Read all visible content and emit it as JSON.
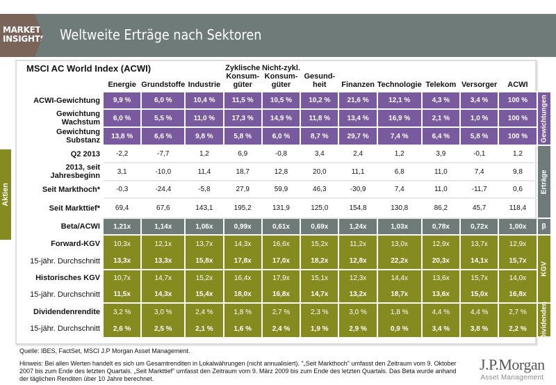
{
  "header": {
    "brand": "MARKET INSIGHTS",
    "title": "Weltweite Erträge nach Sektoren"
  },
  "side_tab": "Aktien",
  "table": {
    "index_title": "MSCI AC World Index (ACWI)",
    "columns": [
      "Energie",
      "Grundstoffe",
      "Industrie",
      "Zyklische Konsum-güter",
      "Nicht-zykl. Konsum-güter",
      "Gesund-heit",
      "Finanzen",
      "Technologie",
      "Telekom",
      "Versorger",
      "ACWI"
    ],
    "sections": {
      "weights": "Gewichtungen",
      "returns": "Erträge",
      "beta": "β",
      "pe": "KGV",
      "div": "Dividenden"
    },
    "rows": [
      {
        "label": "ACWI-Gewichtung",
        "values": [
          "9,9 %",
          "6,0 %",
          "10,4 %",
          "11,5 %",
          "10,5 %",
          "10,2 %",
          "21,6 %",
          "12,1 %",
          "4,3 %",
          "3,4 %",
          "100 %"
        ]
      },
      {
        "label": "Gewichtung Wachstum",
        "values": [
          "6,0 %",
          "5,5 %",
          "11,0 %",
          "17,3 %",
          "14,9 %",
          "11,8 %",
          "13,4 %",
          "16,9 %",
          "2,1 %",
          "1,0 %",
          "100 %"
        ]
      },
      {
        "label": "Gewichtung Substanz",
        "values": [
          "13,8 %",
          "6,6 %",
          "9,8 %",
          "5,8 %",
          "6,0 %",
          "8,7 %",
          "29,7 %",
          "7,4 %",
          "6,4 %",
          "5,8 %",
          "100 %"
        ]
      },
      {
        "label": "Q2 2013",
        "values": [
          "-2,2",
          "-7,7",
          "1,2",
          "6,9",
          "-0,8",
          "3,4",
          "2,4",
          "1,2",
          "3,9",
          "-0,1",
          "1,2"
        ]
      },
      {
        "label": "2013, seit Jahresbeginn",
        "values": [
          "3,1",
          "-10,0",
          "11,4",
          "18,7",
          "12,8",
          "20,0",
          "11,1",
          "6,8",
          "11,0",
          "7,4",
          "9,8"
        ]
      },
      {
        "label": "Seit Markthoch*",
        "values": [
          "-0,3",
          "-24,4",
          "-5,8",
          "27,9",
          "59,9",
          "46,3",
          "-30,9",
          "7,4",
          "11,0",
          "-11,7",
          "0,6"
        ]
      },
      {
        "label": "Seit Markttief*",
        "values": [
          "69,4",
          "67,6",
          "143,1",
          "195,2",
          "131,9",
          "125,0",
          "154,8",
          "130,8",
          "86,2",
          "45,7",
          "118,4"
        ]
      },
      {
        "label": "Beta/ACWI",
        "values": [
          "1,21x",
          "1,14x",
          "1,06x",
          "0,99x",
          "0,61x",
          "0,69x",
          "1,24x",
          "1,03x",
          "0,78x",
          "0,72x",
          "1,00x"
        ]
      },
      {
        "label": "Forward-KGV",
        "values": [
          "10,3x",
          "12,1x",
          "13,7x",
          "14,3x",
          "16,6x",
          "15,2x",
          "11,2x",
          "13,0x",
          "12,9x",
          "13,7x",
          "12,9x"
        ]
      },
      {
        "label": "15-jähr. Durchschnitt",
        "values": [
          "13,3x",
          "13,3x",
          "15,8x",
          "17,8x",
          "17,0x",
          "18,2x",
          "12,8x",
          "22,2x",
          "20,3x",
          "14,1x",
          "15,7x"
        ]
      },
      {
        "label": "Historisches KGV",
        "values": [
          "10,7x",
          "14,7x",
          "15,2x",
          "16,4x",
          "17,9x",
          "15,1x",
          "12,3x",
          "14,4x",
          "13,6x",
          "15,7x",
          "14,0x"
        ]
      },
      {
        "label": "15-jähr. Durchschnitt",
        "values": [
          "11,5x",
          "14,3x",
          "15,4x",
          "18,0x",
          "16,8x",
          "14,7x",
          "13,2x",
          "18,7x",
          "13,6x",
          "15,0x",
          "16,8x"
        ]
      },
      {
        "label": "Dividendenrendite",
        "values": [
          "3,2 %",
          "3,0 %",
          "2,4 %",
          "1,8 %",
          "2,7 %",
          "2,3 %",
          "3,0 %",
          "1,8 %",
          "4,4 %",
          "4,4 %",
          "2,7 %"
        ]
      },
      {
        "label": "15-jähr. Durchschnitt",
        "values": [
          "2,6 %",
          "2,5 %",
          "2,1 %",
          "1,6 %",
          "2,4 %",
          "1,9 %",
          "2,9 %",
          "0,9 %",
          "3,4 %",
          "3,8 %",
          "2,2 %"
        ]
      }
    ]
  },
  "footer": {
    "source": "Quelle: IBES, FactSet, MSCI J.P Morgan Asset Management.",
    "note": "Hinweis: Bei allen Werten handelt es sich um Gesamtrenditen in Lokalwährungen (nicht annualisiert). \"„Seit Markthoch\" umfasst den Zeitraum vom 9. Oktober 2007 bis zum Ende des letzten Quartals. „Seit Markttief\" umfasst den Zeitraum vom 9. März 2009 bis zum Ende des letzten Quartals. Das Beta wurde anhand der täglichen Renditen über 10 Jahre berechnet.",
    "logo_name": "J.P.Morgan",
    "logo_sub": "Asset Management"
  },
  "colors": {
    "header": "#6e7b78",
    "brand_tag": "#7a645a",
    "weights": "#7a5a9e",
    "returns": "#6e7b78",
    "valuation": "#868b1f"
  }
}
